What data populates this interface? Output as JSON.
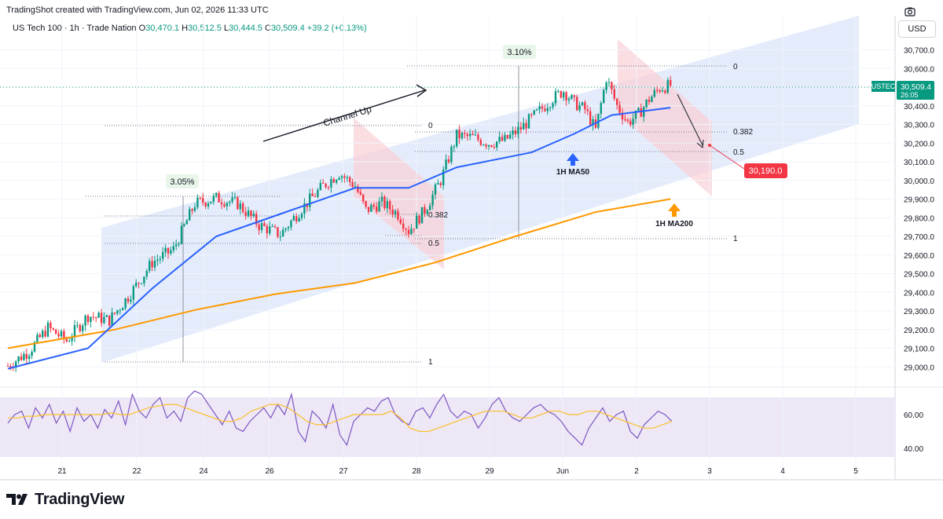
{
  "header": {
    "created_text": "TradingShot created with TradingView.com, Jun 02, 2026 11:33 UTC",
    "symbol_line": "US Tech 100 · 1h · Trade Nation",
    "o_label": "O",
    "o_value": "30,470.1",
    "h_label": "H",
    "h_value": "30,512.5",
    "l_label": "L",
    "l_value": "30,444.5",
    "c_label": "C",
    "c_value": "30,509.4",
    "change": "+39.2 (+0.13%)"
  },
  "currency": "USD",
  "price_tag": {
    "symbol": "USTEC",
    "price": "30,509.4",
    "countdown": "26:05"
  },
  "target_tag": "30,190.0",
  "annotations": {
    "channel": "Channel Up",
    "pct_left": "3.05%",
    "pct_right": "3.10%",
    "ma50": "1H MA50",
    "ma200": "1H MA200"
  },
  "fib": {
    "left": [
      "1"
    ],
    "mid": [
      "0",
      "0.382",
      "0.5"
    ],
    "right": [
      "0",
      "0.382",
      "0.5",
      "1"
    ]
  },
  "brand": "TradingView",
  "colors": {
    "up": "#089981",
    "down": "#f23645",
    "ma50": "#2962ff",
    "ma200": "#ff9800",
    "channel": "#dbe6fb",
    "rsi": "#7e57c2"
  },
  "chart_data": {
    "type": "candlestick",
    "x_ticks": [
      "21",
      "22",
      "24",
      "26",
      "27",
      "28",
      "29",
      "Jun",
      "2",
      "3",
      "4",
      "5"
    ],
    "y_ticks": [
      "30,700.0",
      "30,600.0",
      "30,500.0",
      "30,400.0",
      "30,300.0",
      "30,200.0",
      "30,100.0",
      "30,000.0",
      "29,900.0",
      "29,800.0",
      "29,700.0",
      "29,600.0",
      "29,500.0",
      "29,400.0",
      "29,300.0",
      "29,200.0",
      "29,100.0",
      "29,000.0"
    ],
    "rsi_ticks": [
      "60.00",
      "40.00"
    ],
    "ylim": [
      28930,
      30760
    ],
    "price_path": [
      [
        0,
        29005
      ],
      [
        8,
        29085
      ],
      [
        15,
        29210
      ],
      [
        22,
        29140
      ],
      [
        30,
        29275
      ],
      [
        38,
        29250
      ],
      [
        46,
        29395
      ],
      [
        54,
        29560
      ],
      [
        62,
        29630
      ],
      [
        70,
        29875
      ],
      [
        78,
        29905
      ],
      [
        86,
        29875
      ],
      [
        94,
        29760
      ],
      [
        102,
        29710
      ],
      [
        110,
        29850
      ],
      [
        118,
        29970
      ],
      [
        124,
        30040
      ],
      [
        130,
        29970
      ],
      [
        134,
        29840
      ],
      [
        140,
        29880
      ],
      [
        146,
        29820
      ],
      [
        150,
        29730
      ],
      [
        156,
        29840
      ],
      [
        162,
        30000
      ],
      [
        168,
        30240
      ],
      [
        174,
        30230
      ],
      [
        180,
        30200
      ],
      [
        186,
        30215
      ],
      [
        192,
        30280
      ],
      [
        198,
        30360
      ],
      [
        204,
        30440
      ],
      [
        208,
        30480
      ],
      [
        212,
        30415
      ],
      [
        216,
        30380
      ],
      [
        220,
        30270
      ],
      [
        224,
        30550
      ],
      [
        228,
        30400
      ],
      [
        232,
        30310
      ],
      [
        236,
        30355
      ],
      [
        240,
        30435
      ],
      [
        244,
        30495
      ],
      [
        248,
        30510
      ]
    ],
    "ma50_path": [
      [
        0,
        28990
      ],
      [
        30,
        29100
      ],
      [
        54,
        29420
      ],
      [
        78,
        29700
      ],
      [
        102,
        29820
      ],
      [
        130,
        29960
      ],
      [
        150,
        29960
      ],
      [
        168,
        30070
      ],
      [
        196,
        30150
      ],
      [
        212,
        30250
      ],
      [
        226,
        30350
      ],
      [
        248,
        30390
      ]
    ],
    "ma200_path": [
      [
        0,
        29100
      ],
      [
        40,
        29200
      ],
      [
        70,
        29305
      ],
      [
        100,
        29390
      ],
      [
        130,
        29450
      ],
      [
        160,
        29560
      ],
      [
        190,
        29700
      ],
      [
        220,
        29830
      ],
      [
        248,
        29900
      ]
    ],
    "rsi_values": [
      55,
      60,
      62,
      52,
      64,
      58,
      66,
      55,
      62,
      50,
      64,
      56,
      60,
      52,
      63,
      58,
      68,
      54,
      72,
      62,
      58,
      66,
      70,
      58,
      62,
      56,
      70,
      74,
      72,
      66,
      60,
      54,
      62,
      52,
      50,
      56,
      60,
      64,
      58,
      66,
      60,
      72,
      50,
      44,
      62,
      58,
      52,
      66,
      48,
      42,
      56,
      60,
      64,
      62,
      68,
      70,
      60,
      56,
      54,
      62,
      64,
      58,
      66,
      72,
      62,
      58,
      62,
      60,
      52,
      58,
      66,
      70,
      62,
      58,
      56,
      60,
      64,
      66,
      62,
      60,
      56,
      50,
      46,
      42,
      52,
      58,
      64,
      56,
      60,
      62,
      50,
      46,
      54,
      58,
      62,
      60,
      56
    ],
    "rsi_ma_values": [
      58,
      58,
      59,
      59,
      60,
      60,
      60,
      60,
      60,
      60,
      60,
      61,
      60,
      60,
      62,
      64,
      65,
      66,
      66,
      64,
      62,
      60,
      58,
      56,
      56,
      58,
      62,
      64,
      66,
      66,
      64,
      60,
      56,
      54,
      54,
      56,
      58,
      60,
      60,
      60,
      60,
      62,
      58,
      52,
      50,
      50,
      52,
      54,
      56,
      58,
      60,
      62,
      62,
      62,
      60,
      58,
      58,
      60,
      62,
      62,
      60,
      60,
      62,
      62,
      60,
      58,
      56,
      54,
      52,
      52,
      54,
      56
    ]
  }
}
